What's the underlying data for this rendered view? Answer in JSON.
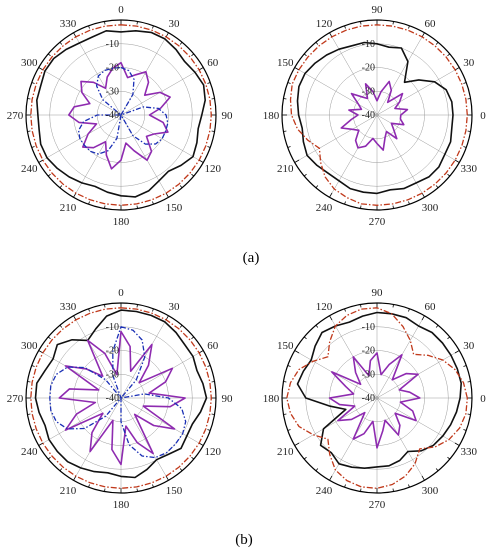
{
  "colors": {
    "measured": "#111111",
    "purple": "#8e2bb0",
    "dashdot_red": "#c0391b",
    "dashdot_blue": "#1a2fb5",
    "grid": "#9a9a9a",
    "frame": "#000000"
  },
  "captions": {
    "a": "(a)",
    "b": "(b)"
  },
  "chart_data": [
    {
      "id": "a-left",
      "type": "polar",
      "theta_orientation": "0-top-clockwise",
      "angle_ticks": [
        "0",
        "30",
        "60",
        "90",
        "120",
        "150",
        "180",
        "210",
        "240",
        "270",
        "300",
        "330"
      ],
      "r_range": [
        -40,
        0
      ],
      "r_ticks": [
        "-10",
        "-20",
        "-30",
        "-40"
      ],
      "series": [
        {
          "style": "measured-black",
          "values": [
            -5,
            -4,
            -3,
            -3,
            -4,
            -5,
            -4,
            -3,
            -4,
            -6,
            -7,
            -6,
            -5,
            -7,
            -9,
            -8,
            -6,
            -5,
            -6,
            -7,
            -8,
            -7,
            -6,
            -5,
            -4,
            -4,
            -5,
            -5,
            -4,
            -4,
            -3,
            -3,
            -4,
            -5,
            -5,
            -4
          ]
        },
        {
          "style": "purple",
          "values": [
            -18,
            -24,
            -22,
            -19,
            -22,
            -27,
            -21,
            -18,
            -23,
            -28,
            -22,
            -19,
            -24,
            -26,
            -20,
            -18,
            -24,
            -28,
            -21,
            -17,
            -22,
            -27,
            -22,
            -19,
            -24,
            -29,
            -22,
            -18,
            -20,
            -26,
            -21,
            -18,
            -22,
            -27,
            -23,
            -20
          ]
        },
        {
          "style": "dashdot-red",
          "values": [
            -2,
            -2,
            -2,
            -2,
            -2,
            -2,
            -2,
            -2,
            -2,
            -2,
            -2,
            -2,
            -2,
            -2,
            -2,
            -2,
            -2,
            -2,
            -2,
            -2,
            -2,
            -2,
            -2,
            -2,
            -2,
            -2,
            -2,
            -2,
            -2,
            -2,
            -2,
            -2,
            -2,
            -2,
            -2,
            -2
          ]
        },
        {
          "style": "dashdot-blue",
          "values": [
            -20,
            -21,
            -24,
            -30,
            -40,
            -40,
            -40,
            -30,
            -24,
            -21,
            -20,
            -20,
            -20,
            -21,
            -24,
            -30,
            -40,
            -40,
            -40,
            -30,
            -24,
            -21,
            -20,
            -20,
            -20,
            -21,
            -24,
            -30,
            -40,
            -40,
            -40,
            -30,
            -24,
            -21,
            -20,
            -20
          ]
        }
      ]
    },
    {
      "id": "a-right",
      "type": "polar",
      "theta_orientation": "0-right-counterclockwise",
      "angle_ticks": [
        "0",
        "30",
        "60",
        "90",
        "120",
        "150",
        "180",
        "210",
        "240",
        "270",
        "300",
        "330"
      ],
      "r_range": [
        -40,
        0
      ],
      "r_ticks": [
        "-10",
        "-20",
        "-30",
        "-40"
      ],
      "series": [
        {
          "style": "measured-black",
          "values": [
            -8,
            -8,
            -9,
            -12,
            -17,
            -22,
            -14,
            -10,
            -11,
            -10,
            -9,
            -9,
            -8,
            -7,
            -6,
            -5,
            -5,
            -6,
            -7,
            -8,
            -7,
            -6,
            -7,
            -8,
            -8,
            -7,
            -7,
            -7,
            -8,
            -7,
            -7,
            -6,
            -6,
            -7,
            -7,
            -8
          ]
        },
        {
          "style": "purple",
          "values": [
            -30,
            -27,
            -32,
            -29,
            -26,
            -33,
            -28,
            -25,
            -30,
            -34,
            -30,
            -26,
            -32,
            -30,
            -26,
            -31,
            -33,
            -28,
            -32,
            -29,
            -24,
            -28,
            -30,
            -26,
            -24,
            -26,
            -30,
            -28,
            -25,
            -30,
            -32,
            -27,
            -31,
            -33,
            -28,
            -30
          ]
        },
        {
          "style": "dashdot-red",
          "values": [
            -2,
            -2,
            -2,
            -2,
            -2,
            -2,
            -2,
            -2,
            -2,
            -2,
            -2,
            -2,
            -2,
            -2,
            -2,
            -2,
            -2,
            -3,
            -4,
            -6,
            -9,
            -12,
            -9,
            -6,
            -4,
            -3,
            -2,
            -2,
            -2,
            -2,
            -2,
            -2,
            -2,
            -2,
            -2,
            -2
          ]
        }
      ]
    },
    {
      "id": "b-left",
      "type": "polar",
      "theta_orientation": "0-top-clockwise",
      "angle_ticks": [
        "0",
        "30",
        "60",
        "90",
        "120",
        "150",
        "180",
        "210",
        "240",
        "270",
        "300",
        "330"
      ],
      "r_range": [
        -40,
        0
      ],
      "r_ticks": [
        "-10",
        "-20",
        "-30",
        "-40"
      ],
      "series": [
        {
          "style": "measured-black",
          "values": [
            -3,
            -3,
            -3,
            -3,
            -4,
            -5,
            -5,
            -6,
            -5,
            -4,
            -6,
            -8,
            -8,
            -7,
            -9,
            -10,
            -8,
            -6,
            -7,
            -8,
            -7,
            -6,
            -5,
            -5,
            -5,
            -6,
            -5,
            -4,
            -4,
            -6,
            -7,
            -5,
            -8,
            -12,
            -9,
            -5
          ]
        },
        {
          "style": "purple",
          "values": [
            -12,
            -18,
            -28,
            -14,
            -22,
            -30,
            -15,
            -20,
            -28,
            -13,
            -19,
            -30,
            -14,
            -22,
            -31,
            -13,
            -20,
            -28,
            -12,
            -18,
            -30,
            -14,
            -21,
            -30,
            -13,
            -20,
            -29,
            -14,
            -18,
            -30,
            -13,
            -21,
            -28,
            -12,
            -20,
            -30
          ]
        },
        {
          "style": "dashdot-red",
          "values": [
            -2,
            -2,
            -2,
            -2,
            -2,
            -2,
            -2,
            -2,
            -2,
            -2,
            -2,
            -2,
            -2,
            -2,
            -2,
            -2,
            -2,
            -2,
            -2,
            -2,
            -2,
            -2,
            -2,
            -2,
            -2,
            -2,
            -2,
            -2,
            -2,
            -2,
            -2,
            -2,
            -2,
            -2,
            -2,
            -2
          ]
        },
        {
          "style": "dashdot-blue",
          "values": [
            -10,
            -11,
            -14,
            -20,
            -30,
            -40,
            -40,
            -40,
            -30,
            -20,
            -14,
            -11,
            -10,
            -10,
            -10,
            -11,
            -14,
            -20,
            -30,
            -40,
            -40,
            -40,
            -30,
            -20,
            -14,
            -11,
            -10,
            -10,
            -10,
            -11,
            -14,
            -20,
            -30,
            -40,
            -30,
            -20
          ]
        }
      ]
    },
    {
      "id": "b-right",
      "type": "polar",
      "theta_orientation": "0-right-counterclockwise",
      "angle_ticks": [
        "0",
        "30",
        "60",
        "90",
        "120",
        "150",
        "180",
        "210",
        "240",
        "270",
        "300",
        "330"
      ],
      "r_range": [
        -40,
        0
      ],
      "r_ticks": [
        "-10",
        "-20",
        "-30",
        "-40"
      ],
      "series": [
        {
          "style": "measured-black",
          "values": [
            -5,
            -4,
            -4,
            -4,
            -4,
            -4,
            -5,
            -4,
            -4,
            -4,
            -5,
            -6,
            -5,
            -4,
            -6,
            -8,
            -7,
            -6,
            -10,
            -20,
            -26,
            -14,
            -9,
            -10,
            -8,
            -9,
            -10,
            -11,
            -11,
            -12,
            -14,
            -11,
            -9,
            -8,
            -7,
            -6
          ]
        },
        {
          "style": "purple",
          "values": [
            -22,
            -26,
            -30,
            -20,
            -24,
            -30,
            -19,
            -25,
            -30,
            -21,
            -24,
            -30,
            -20,
            -26,
            -31,
            -18,
            -26,
            -30,
            -20,
            -24,
            -30,
            -21,
            -26,
            -32,
            -20,
            -24,
            -30,
            -19,
            -26,
            -30,
            -22,
            -25,
            -30,
            -21,
            -24,
            -30
          ]
        },
        {
          "style": "dashdot-red",
          "values": [
            -2,
            -3,
            -5,
            -8,
            -12,
            -16,
            -12,
            -8,
            -4,
            -2,
            -2,
            -3,
            -5,
            -9,
            -13,
            -9,
            -5,
            -3,
            -2,
            -3,
            -5,
            -9,
            -13,
            -9,
            -5,
            -3,
            -2,
            -2,
            -3,
            -5,
            -8,
            -12,
            -8,
            -5,
            -3,
            -2
          ]
        }
      ]
    }
  ]
}
